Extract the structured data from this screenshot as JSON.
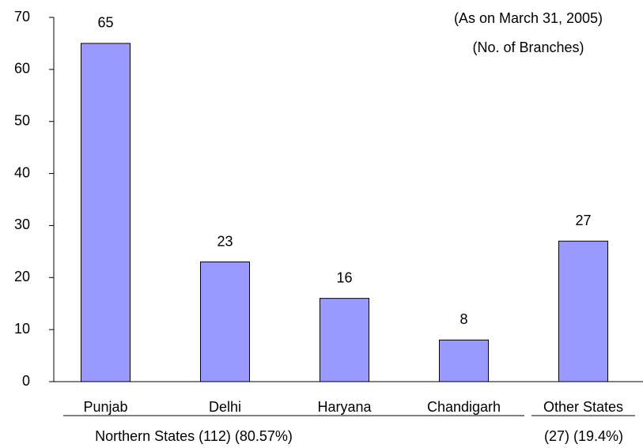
{
  "chart_data": {
    "type": "bar",
    "annotations": [
      "(As on March 31, 2005)",
      "(No. of Branches)"
    ],
    "categories": [
      "Punjab",
      "Delhi",
      "Haryana",
      "Chandigarh",
      "Other States"
    ],
    "values": [
      65,
      23,
      16,
      8,
      27
    ],
    "color": "#9999ff",
    "ylim": [
      0,
      70
    ],
    "yticks": [
      0,
      10,
      20,
      30,
      40,
      50,
      60,
      70
    ],
    "groups": [
      "Northern States (112) (80.57%)",
      "(27) (19.4%)"
    ]
  }
}
